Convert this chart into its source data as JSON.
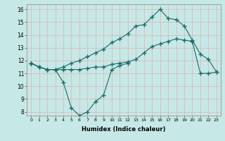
{
  "xlabel": "Humidex (Indice chaleur)",
  "x_values": [
    0,
    1,
    2,
    3,
    4,
    5,
    6,
    7,
    8,
    9,
    10,
    11,
    12,
    13,
    14,
    15,
    16,
    17,
    18,
    19,
    20,
    21,
    22,
    23
  ],
  "line_min": [
    11.8,
    11.5,
    11.3,
    11.3,
    10.3,
    8.3,
    7.7,
    8.0,
    8.8,
    9.3,
    11.3,
    11.6,
    11.8,
    null,
    null,
    null,
    null,
    null,
    null,
    null,
    null,
    null,
    null,
    null
  ],
  "line_avg": [
    11.8,
    11.5,
    11.3,
    11.3,
    11.3,
    11.3,
    11.3,
    11.4,
    11.5,
    11.5,
    11.7,
    11.8,
    11.9,
    12.1,
    12.6,
    13.1,
    13.3,
    13.5,
    13.7,
    13.6,
    13.5,
    11.0,
    11.0,
    11.1
  ],
  "line_max": [
    11.8,
    11.5,
    11.3,
    11.3,
    11.5,
    11.8,
    12.0,
    12.3,
    12.6,
    12.9,
    13.4,
    13.7,
    14.1,
    14.7,
    14.8,
    15.4,
    16.0,
    15.3,
    15.2,
    14.7,
    13.6,
    12.5,
    12.1,
    11.1
  ],
  "ylim": [
    7.7,
    16.4
  ],
  "yticks": [
    8,
    9,
    10,
    11,
    12,
    13,
    14,
    15,
    16
  ],
  "xlim": [
    -0.5,
    23.5
  ],
  "bg_color": "#c6e8e6",
  "line_color": "#1a6b6b",
  "grid_color": "#e0b0b0"
}
